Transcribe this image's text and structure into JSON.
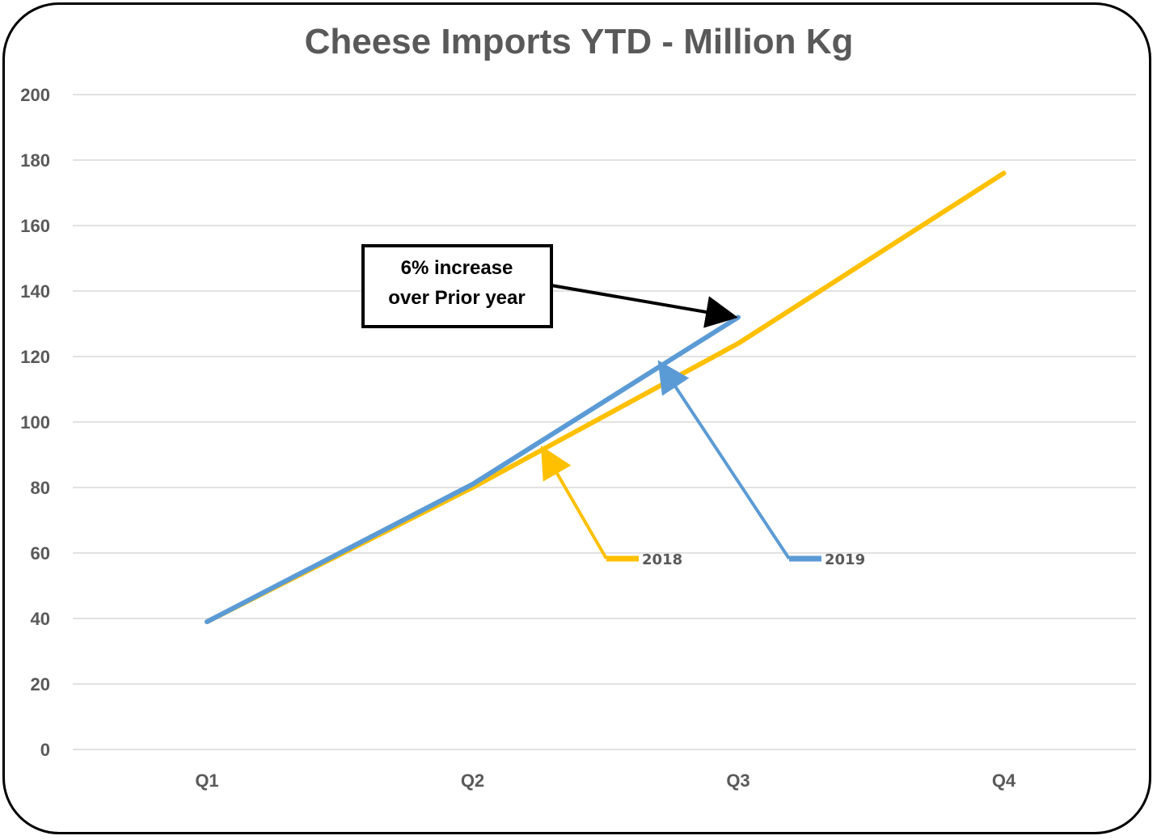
{
  "chart_data": {
    "type": "line",
    "title": "Cheese Imports YTD - Million Kg",
    "xlabel": "",
    "ylabel": "",
    "categories": [
      "Q1",
      "Q2",
      "Q3",
      "Q4"
    ],
    "ylim": [
      0,
      200
    ],
    "y_ticks": [
      0,
      20,
      40,
      60,
      80,
      100,
      120,
      140,
      160,
      180,
      200
    ],
    "grid": true,
    "series": [
      {
        "name": "2018",
        "color": "#FFC000",
        "values": [
          39,
          80,
          124,
          176
        ]
      },
      {
        "name": "2019",
        "color": "#5B9BD5",
        "values": [
          39,
          81,
          132,
          null
        ]
      }
    ],
    "annotations": [
      {
        "text_lines": [
          "6% increase",
          "over Prior year"
        ],
        "points_to": {
          "series": "2019",
          "category": "Q3"
        }
      }
    ]
  }
}
